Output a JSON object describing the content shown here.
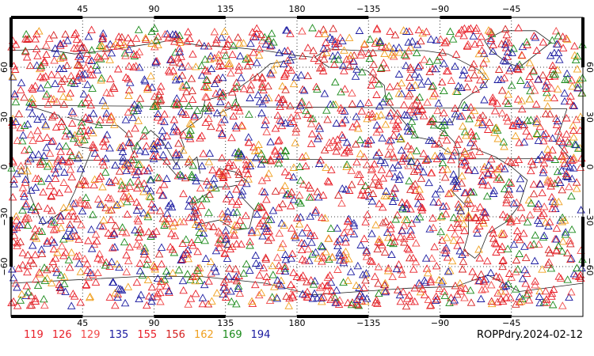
{
  "map": {
    "projection": "equirectangular",
    "lon_range": [
      0,
      360
    ],
    "lat_range": [
      -90,
      90
    ],
    "central_longitude": 180,
    "grid_lines": "dotted",
    "coastlines": "shown",
    "marker": "open-triangle",
    "lon_ticks": [
      {
        "value": 45,
        "label": "45"
      },
      {
        "value": 90,
        "label": "90"
      },
      {
        "value": 135,
        "label": "135"
      },
      {
        "value": 180,
        "label": "180"
      },
      {
        "value": 225,
        "label": "−135"
      },
      {
        "value": 270,
        "label": "−90"
      },
      {
        "value": 315,
        "label": "−45"
      }
    ],
    "lat_ticks": [
      {
        "value": 60,
        "label": "60"
      },
      {
        "value": 30,
        "label": "30"
      },
      {
        "value": 0,
        "label": "0"
      },
      {
        "value": -30,
        "label": "−30"
      },
      {
        "value": -60,
        "label": "−60"
      }
    ]
  },
  "legend": {
    "items": [
      {
        "label": "119",
        "color": "#e8202a"
      },
      {
        "label": "126",
        "color": "#e8202a"
      },
      {
        "label": "129",
        "color": "#f04a4a"
      },
      {
        "label": "135",
        "color": "#1a1aa0"
      },
      {
        "label": "155",
        "color": "#e8202a"
      },
      {
        "label": "156",
        "color": "#d42020"
      },
      {
        "label": "162",
        "color": "#f0a020"
      },
      {
        "label": "169",
        "color": "#1a8a1a"
      },
      {
        "label": "194",
        "color": "#1a1aa0"
      }
    ]
  },
  "product_label": "ROPPdry.2024-02-12"
}
